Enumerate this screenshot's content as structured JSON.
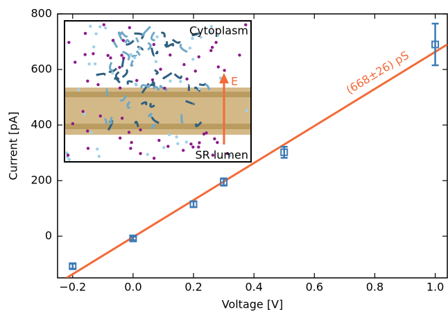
{
  "chart_data": {
    "type": "scatter",
    "xlabel": "Voltage [V]",
    "ylabel": "Current [pA]",
    "x": [
      -0.2,
      0.0,
      0.2,
      0.3,
      0.5,
      1.0
    ],
    "values": [
      -108,
      -8,
      115,
      195,
      302,
      690
    ],
    "errors": [
      9,
      6,
      10,
      13,
      20,
      75
    ],
    "color": "#3b7ab5",
    "fit": {
      "x": [
        -0.22,
        1.04
      ],
      "values": [
        -150,
        690
      ],
      "color": "#f26b38",
      "label": "(668±26) pS"
    },
    "xlim": [
      -0.25,
      1.04
    ],
    "ylim": [
      -150,
      800
    ],
    "xticks": [
      {
        "value": -0.2,
        "label": "−0.2"
      },
      {
        "value": 0,
        "label": "0.0"
      },
      0.2,
      0.4,
      0.6,
      0.8,
      {
        "value": 1,
        "label": "1.0"
      }
    ],
    "yticks": [
      0,
      200,
      400,
      600,
      800
    ],
    "inset": {
      "top_label": "Cytoplasm",
      "bottom_label": "SR lumen",
      "field_label": "E"
    }
  }
}
